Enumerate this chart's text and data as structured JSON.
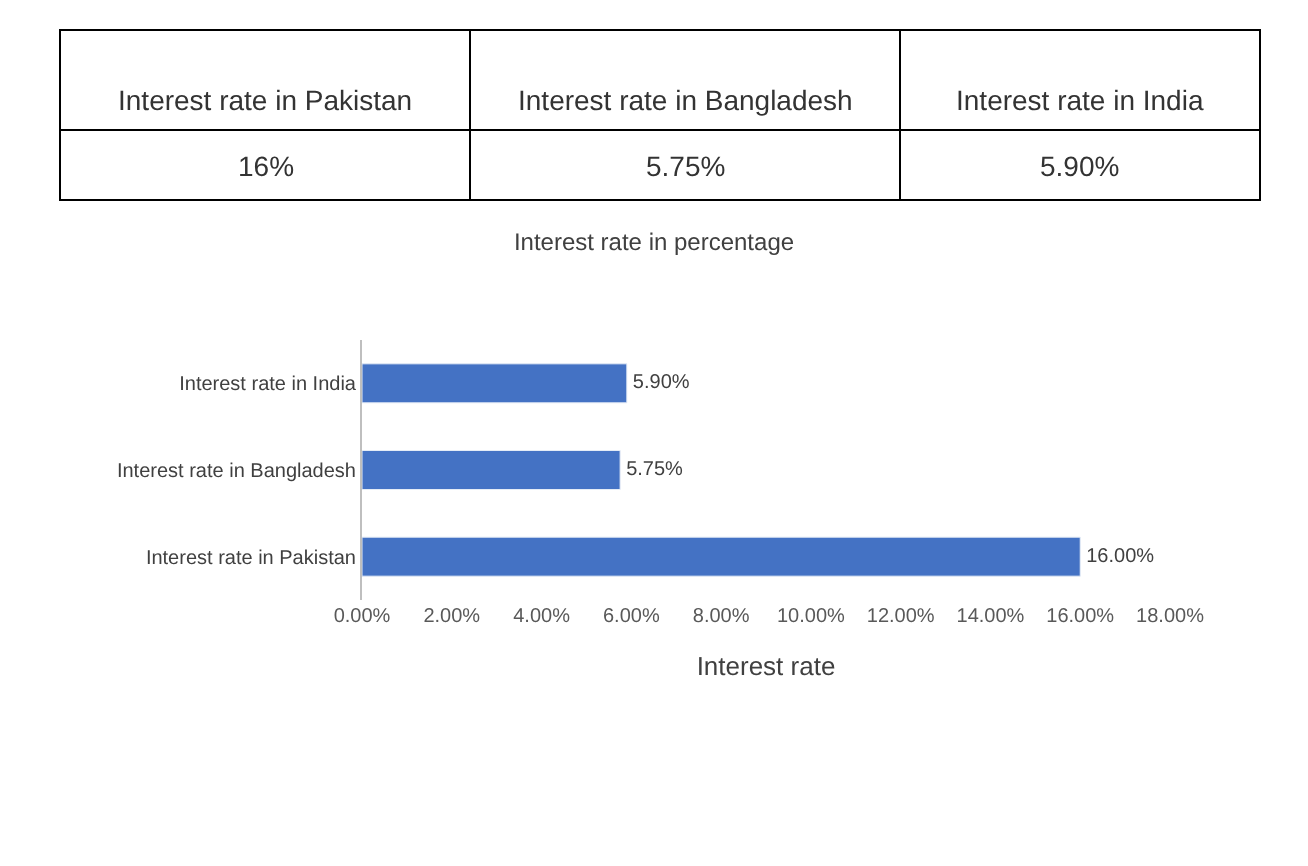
{
  "chart_data": {
    "type": "bar",
    "orientation": "horizontal",
    "title": "Interest rate in percentage",
    "xlabel": "Interest rate",
    "categories": [
      "Interest rate in India",
      "Interest rate in Bangladesh",
      "Interest rate in Pakistan"
    ],
    "values": [
      5.9,
      5.75,
      16
    ],
    "value_labels": [
      "5.90%",
      "5.75%",
      "16.00%"
    ],
    "color": "#4472c4",
    "xlim": [
      0,
      18
    ],
    "xticks": [
      {
        "value": 0,
        "label": "0.00%"
      },
      {
        "value": 2,
        "label": "2.00%"
      },
      {
        "value": 4,
        "label": "4.00%"
      },
      {
        "value": 6,
        "label": "6.00%"
      },
      {
        "value": 8,
        "label": "8.00%"
      },
      {
        "value": 10,
        "label": "10.00%"
      },
      {
        "value": 12,
        "label": "12.00%"
      },
      {
        "value": 14,
        "label": "14.00%"
      },
      {
        "value": 16,
        "label": "16.00%"
      },
      {
        "value": 18,
        "label": "18.00%"
      }
    ],
    "grid": false,
    "legend": false,
    "annotations": [
      "Interest rate in Pakistan",
      "Interest rate in Bangladesh",
      "Interest rate in India",
      "16%",
      "5.75%",
      "5.90%"
    ]
  }
}
